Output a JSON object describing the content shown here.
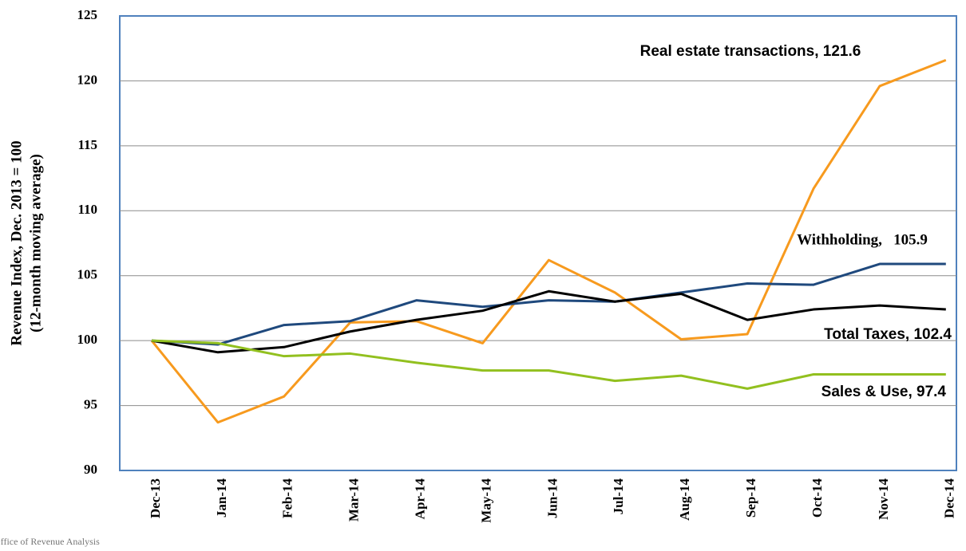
{
  "chart_data": {
    "type": "line",
    "y_label": [
      "Revenue Index, Dec. 2013 = 100",
      "(12-month moving average)"
    ],
    "source": "Office of Revenue Analysis",
    "categories": [
      "Dec-13",
      "Jan-14",
      "Feb-14",
      "Mar-14",
      "Apr-14",
      "May-14",
      "Jun-14",
      "Jul-14",
      "Aug-14",
      "Sep-14",
      "Oct-14",
      "Nov-14",
      "Dec-14"
    ],
    "series": [
      {
        "name": "Real estate transactions, 121.6",
        "color": "#f79a1e",
        "values": [
          100,
          93.7,
          95.7,
          101.4,
          101.5,
          99.8,
          106.2,
          103.7,
          100.1,
          100.5,
          111.7,
          119.6,
          121.6
        ]
      },
      {
        "name": "Withholding,   105.9",
        "color": "#1f497d",
        "values": [
          100,
          99.7,
          101.2,
          101.5,
          103.1,
          102.6,
          103.1,
          103.0,
          103.7,
          104.4,
          104.3,
          105.9,
          105.9
        ]
      },
      {
        "name": "Total Taxes, 102.4",
        "color": "#000000",
        "values": [
          100,
          99.1,
          99.5,
          100.7,
          101.6,
          102.3,
          103.8,
          103.0,
          103.6,
          101.6,
          102.4,
          102.7,
          102.4
        ]
      },
      {
        "name": "Sales & Use, 97.4",
        "color": "#92c01f",
        "values": [
          100,
          99.8,
          98.8,
          99.0,
          98.3,
          97.7,
          97.7,
          96.9,
          97.3,
          96.3,
          97.4,
          97.4,
          97.4
        ]
      }
    ],
    "ylim": [
      90,
      125
    ],
    "yticks": [
      90,
      95,
      100,
      105,
      110,
      115,
      120,
      125
    ],
    "grid": true
  }
}
